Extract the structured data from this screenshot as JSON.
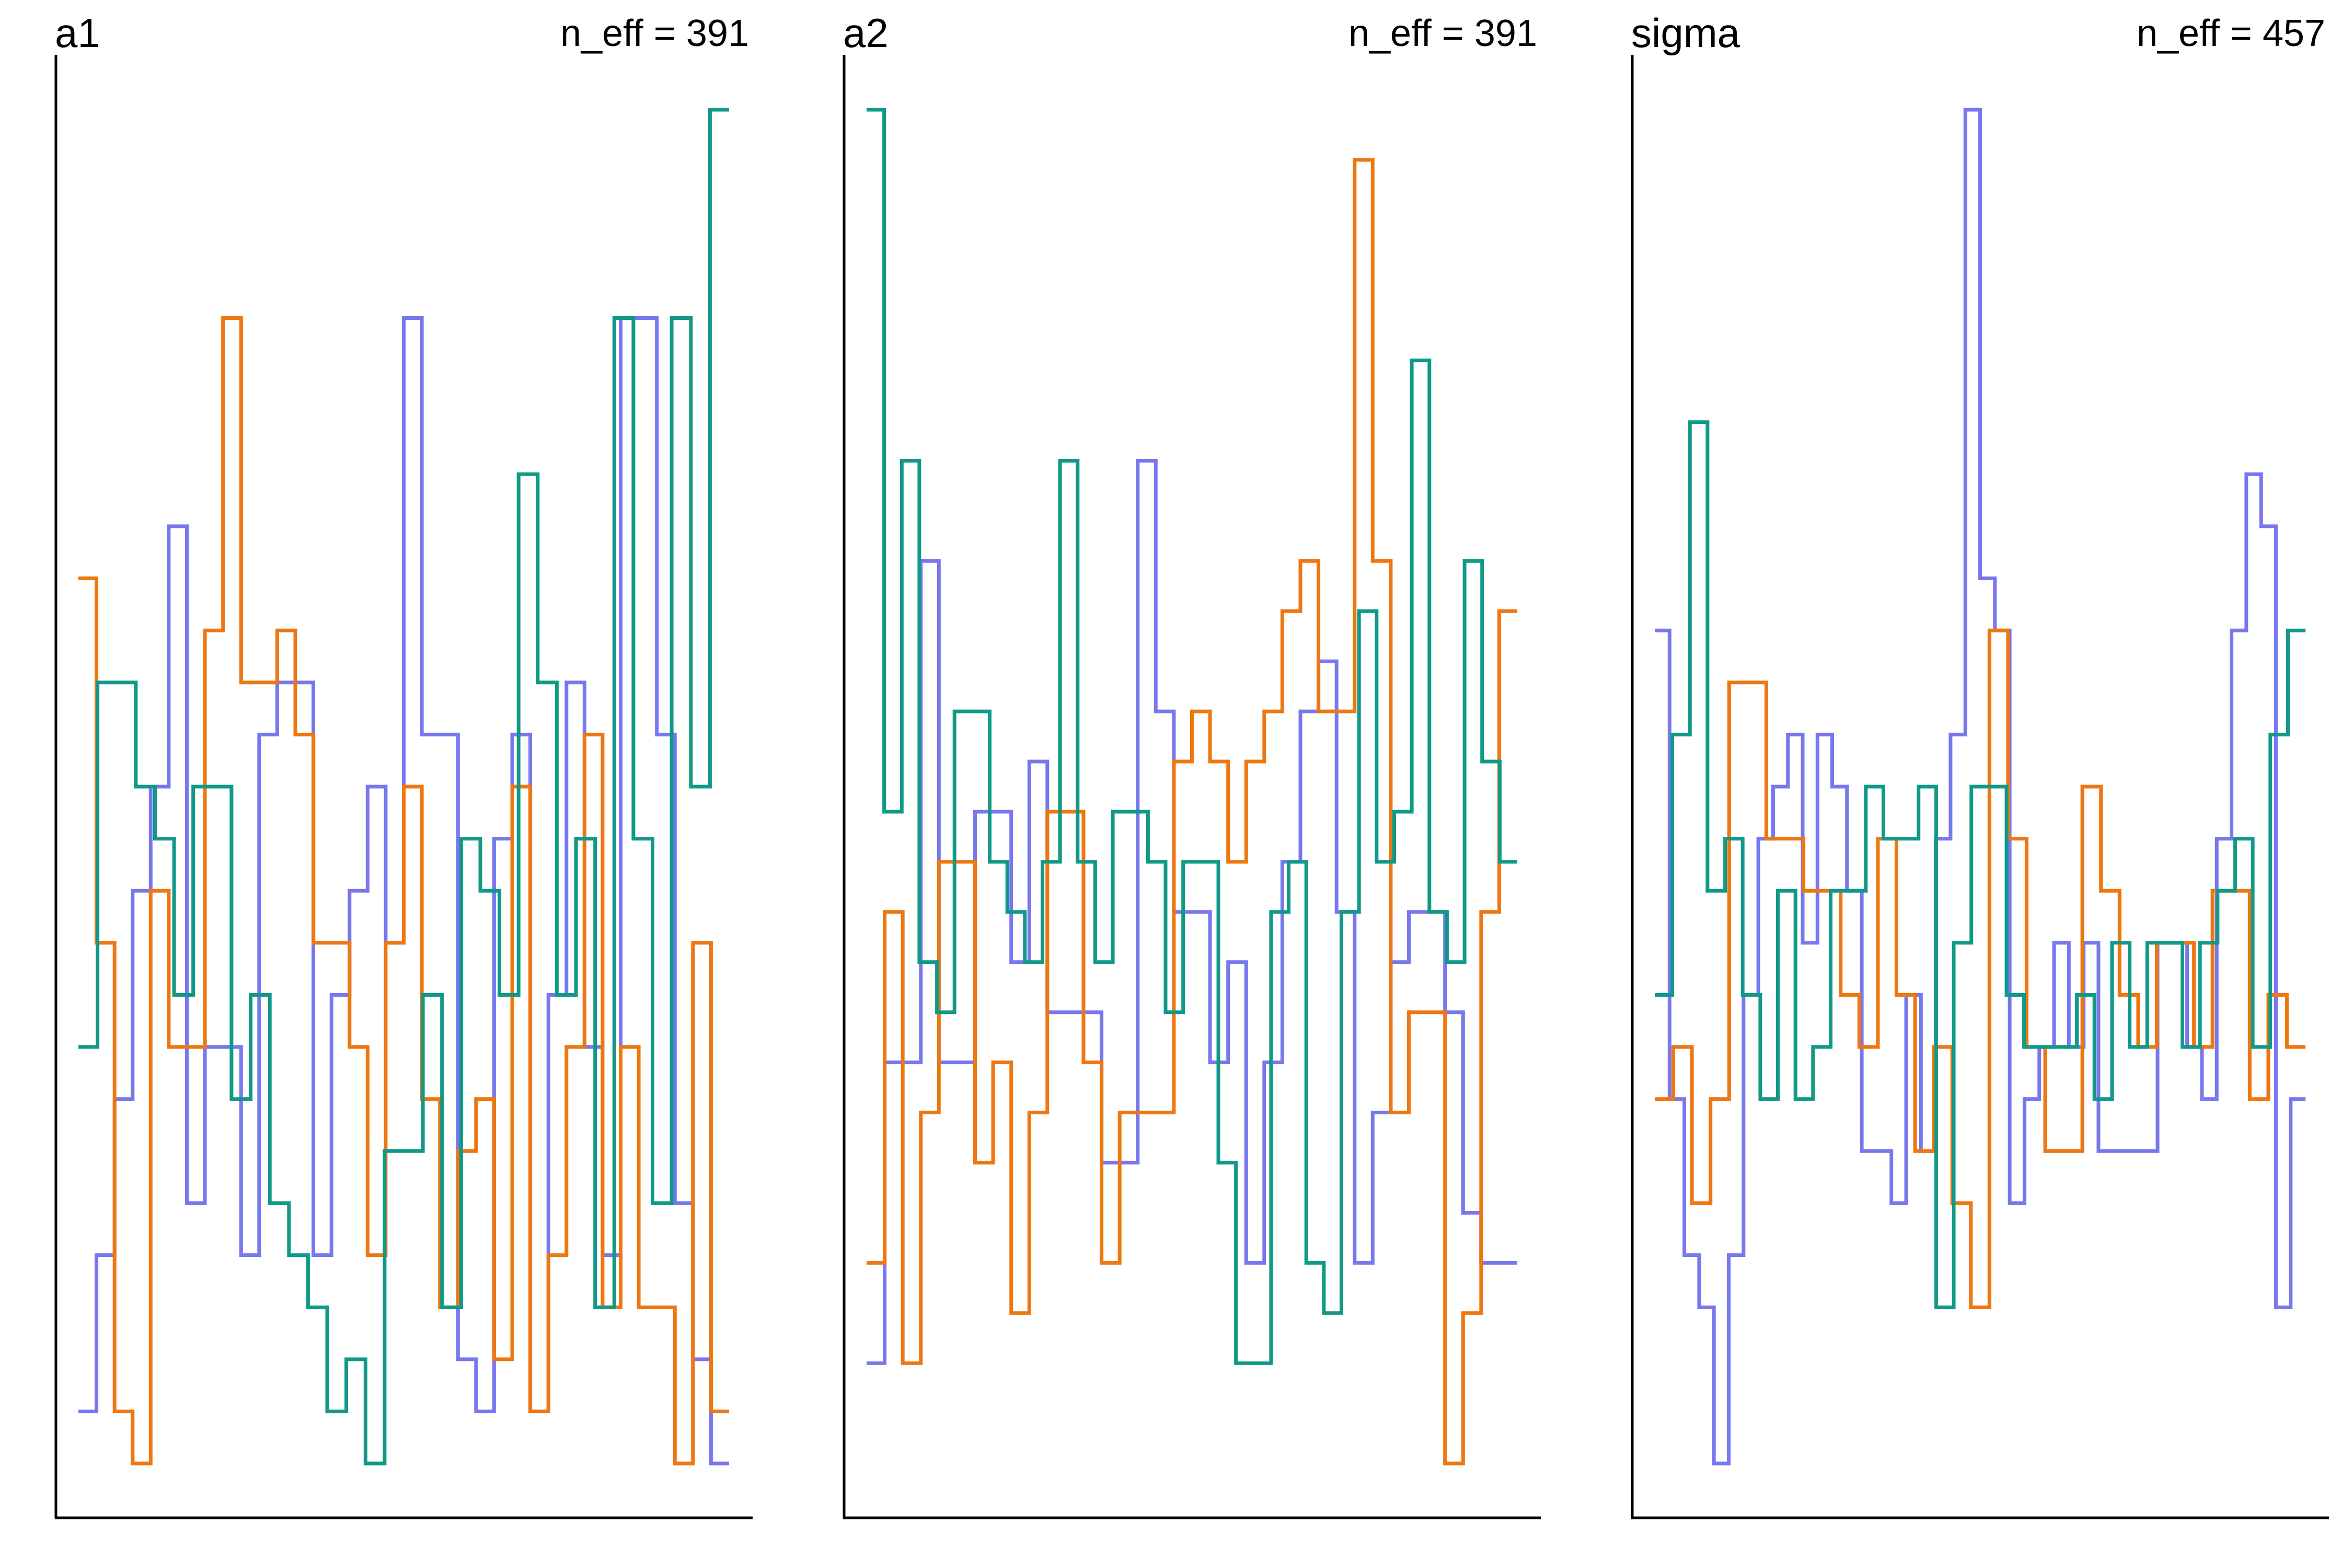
{
  "chart_data": [
    {
      "type": "line",
      "subtype": "trank-plot",
      "title": "a1",
      "annotation": "n_eff = 391",
      "xlabel": "",
      "ylabel": "",
      "grid": false,
      "legend": "none",
      "series": [
        {
          "color": "#7777ee",
          "ranks": [
            1,
            4,
            7,
            11,
            13,
            18,
            5,
            8,
            8,
            4,
            14,
            15,
            15,
            4,
            9,
            11,
            13,
            10,
            22,
            14,
            14,
            2,
            1,
            12,
            14,
            1,
            9,
            15,
            8,
            4,
            22,
            22,
            14,
            5,
            2,
            0
          ]
        },
        {
          "color": "#ee7711",
          "ranks": [
            17,
            10,
            1,
            0,
            11,
            8,
            8,
            16,
            22,
            15,
            15,
            16,
            14,
            10,
            10,
            8,
            4,
            10,
            13,
            7,
            3,
            6,
            7,
            2,
            13,
            1,
            4,
            8,
            14,
            3,
            8,
            3,
            3,
            0,
            10,
            1
          ]
        },
        {
          "color": "#119988",
          "ranks": [
            8,
            15,
            15,
            13,
            12,
            9,
            13,
            13,
            7,
            9,
            5,
            4,
            3,
            1,
            2,
            0,
            6,
            6,
            9,
            3,
            12,
            11,
            9,
            19,
            15,
            9,
            12,
            3,
            22,
            12,
            5,
            22,
            13,
            26
          ]
        }
      ]
    },
    {
      "type": "line",
      "subtype": "trank-plot",
      "title": "a2",
      "annotation": "n_eff = 391",
      "xlabel": "",
      "ylabel": "",
      "grid": false,
      "legend": "none",
      "series": [
        {
          "color": "#7777ee",
          "ranks": [
            2,
            8,
            8,
            18,
            8,
            8,
            13,
            13,
            10,
            14,
            9,
            9,
            9,
            6,
            6,
            20,
            15,
            11,
            11,
            8,
            10,
            4,
            8,
            12,
            15,
            16,
            11,
            4,
            7,
            10,
            11,
            11,
            9,
            5,
            4,
            4
          ]
        },
        {
          "color": "#ee7711",
          "ranks": [
            4,
            11,
            2,
            7,
            12,
            12,
            6,
            8,
            3,
            7,
            13,
            13,
            8,
            4,
            7,
            7,
            7,
            14,
            15,
            14,
            12,
            14,
            15,
            17,
            18,
            15,
            15,
            26,
            18,
            7,
            9,
            9,
            0,
            3,
            11,
            17
          ]
        },
        {
          "color": "#119988",
          "ranks": [
            27,
            13,
            20,
            10,
            9,
            15,
            15,
            12,
            11,
            10,
            12,
            20,
            12,
            10,
            13,
            13,
            12,
            9,
            12,
            12,
            6,
            2,
            2,
            11,
            12,
            4,
            3,
            11,
            17,
            12,
            13,
            22,
            11,
            10,
            18,
            14,
            12
          ]
        }
      ]
    },
    {
      "type": "line",
      "subtype": "trank-plot",
      "title": "sigma",
      "annotation": "n_eff = 457",
      "xlabel": "",
      "ylabel": "",
      "grid": false,
      "legend": "none",
      "series": [
        {
          "color": "#7777ee",
          "ranks": [
            16,
            7,
            4,
            3,
            0,
            4,
            9,
            12,
            13,
            14,
            10,
            14,
            13,
            11,
            6,
            6,
            5,
            9,
            6,
            12,
            14,
            26,
            17,
            16,
            5,
            7,
            8,
            10,
            8,
            10,
            6,
            6,
            6,
            6,
            10,
            10,
            8,
            7,
            12,
            16,
            19,
            18,
            3,
            7
          ]
        },
        {
          "color": "#ee7711",
          "ranks": [
            7,
            8,
            5,
            7,
            15,
            15,
            12,
            12,
            11,
            11,
            9,
            8,
            12,
            9,
            6,
            8,
            5,
            3,
            16,
            12,
            8,
            6,
            6,
            13,
            11,
            9,
            8,
            10,
            10,
            8,
            11,
            11,
            7,
            9,
            8
          ]
        },
        {
          "color": "#119988",
          "ranks": [
            9,
            14,
            20,
            11,
            12,
            9,
            7,
            11,
            7,
            8,
            11,
            11,
            13,
            12,
            12,
            13,
            3,
            10,
            13,
            13,
            9,
            8,
            8,
            8,
            9,
            7,
            10,
            8,
            10,
            10,
            8,
            10,
            11,
            12,
            8,
            14,
            16
          ]
        }
      ]
    }
  ]
}
